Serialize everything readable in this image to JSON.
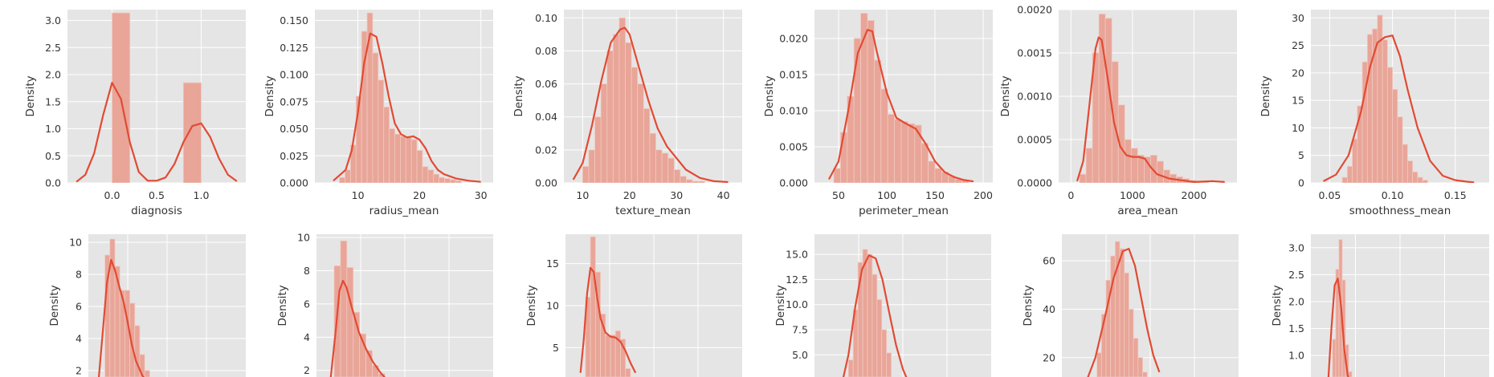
{
  "style": {
    "panel_bg": "#e5e5e5",
    "grid": "#ffffff",
    "bar_fill": "#e8a598",
    "bar_edge": "#f2c9c0",
    "kde": "#e24a33"
  },
  "chart_data": [
    {
      "type": "histogram+kde",
      "grid": true,
      "xlabel": "diagnosis",
      "ylabel": "Density",
      "xlim": [
        -0.5,
        1.5
      ],
      "ylim": [
        0,
        3.2
      ],
      "xticks": [
        0.0,
        0.5,
        1.0
      ],
      "yticks": [
        0,
        0.5,
        1.0,
        1.5,
        2.0,
        2.5,
        3.0
      ],
      "xtick_labels": [
        "0.0",
        "0.5",
        "1.0"
      ],
      "ytick_labels": [
        "0.0",
        "0.5",
        "1.0",
        "1.5",
        "2.0",
        "2.5",
        "3.0"
      ],
      "bins": {
        "start": 0.0,
        "width": 0.2,
        "density": [
          3.14,
          0,
          0,
          0,
          1.85
        ]
      },
      "kde": {
        "x": [
          -0.4,
          -0.3,
          -0.2,
          -0.1,
          0.0,
          0.1,
          0.2,
          0.3,
          0.4,
          0.5,
          0.6,
          0.7,
          0.8,
          0.9,
          1.0,
          1.1,
          1.2,
          1.3,
          1.4
        ],
        "y": [
          0.02,
          0.15,
          0.55,
          1.25,
          1.85,
          1.55,
          0.75,
          0.2,
          0.04,
          0.04,
          0.1,
          0.35,
          0.75,
          1.05,
          1.1,
          0.85,
          0.45,
          0.15,
          0.03
        ]
      }
    },
    {
      "type": "histogram+kde",
      "grid": true,
      "xlabel": "radius_mean",
      "ylabel": "Density",
      "xlim": [
        3,
        32
      ],
      "ylim": [
        0,
        0.16
      ],
      "xticks": [
        10,
        20,
        30
      ],
      "yticks": [
        0,
        0.025,
        0.05,
        0.075,
        0.1,
        0.125,
        0.15
      ],
      "xtick_labels": [
        "10",
        "20",
        "30"
      ],
      "ytick_labels": [
        "0.000",
        "0.025",
        "0.050",
        "0.075",
        "0.100",
        "0.125",
        "0.150"
      ],
      "bins": {
        "start": 7,
        "width": 0.9,
        "density": [
          0.005,
          0.012,
          0.035,
          0.08,
          0.14,
          0.157,
          0.12,
          0.095,
          0.07,
          0.05,
          0.045,
          0.043,
          0.042,
          0.04,
          0.03,
          0.015,
          0.012,
          0.008,
          0.005,
          0.004,
          0.003,
          0.002
        ]
      },
      "kde": {
        "x": [
          6,
          8,
          9,
          10,
          11,
          12,
          13,
          14,
          15,
          16,
          17,
          18,
          19,
          20,
          21,
          22,
          23,
          24,
          26,
          28,
          30
        ],
        "y": [
          0.002,
          0.012,
          0.03,
          0.065,
          0.11,
          0.138,
          0.135,
          0.11,
          0.08,
          0.055,
          0.045,
          0.042,
          0.043,
          0.04,
          0.032,
          0.02,
          0.012,
          0.008,
          0.004,
          0.002,
          0.001
        ]
      }
    },
    {
      "type": "histogram+kde",
      "grid": true,
      "xlabel": "texture_mean",
      "ylabel": "Density",
      "xlim": [
        6,
        44
      ],
      "ylim": [
        0,
        0.105
      ],
      "xticks": [
        10,
        20,
        30,
        40
      ],
      "yticks": [
        0,
        0.02,
        0.04,
        0.06,
        0.08,
        0.1
      ],
      "xtick_labels": [
        "10",
        "20",
        "30",
        "40"
      ],
      "ytick_labels": [
        "0.00",
        "0.02",
        "0.04",
        "0.06",
        "0.08",
        "0.10"
      ],
      "bins": {
        "start": 10,
        "width": 1.3,
        "density": [
          0.01,
          0.02,
          0.04,
          0.06,
          0.08,
          0.09,
          0.1,
          0.085,
          0.07,
          0.06,
          0.045,
          0.03,
          0.02,
          0.018,
          0.015,
          0.008,
          0.004,
          0.002,
          0.001,
          0.001
        ]
      },
      "kde": {
        "x": [
          8,
          10,
          12,
          14,
          16,
          18,
          19,
          20,
          22,
          24,
          26,
          28,
          30,
          32,
          35,
          38,
          41
        ],
        "y": [
          0.002,
          0.012,
          0.035,
          0.062,
          0.085,
          0.093,
          0.094,
          0.09,
          0.07,
          0.05,
          0.033,
          0.022,
          0.015,
          0.008,
          0.003,
          0.001,
          0.0005
        ]
      }
    },
    {
      "type": "histogram+kde",
      "grid": true,
      "xlabel": "perimeter_mean",
      "ylabel": "Density",
      "xlim": [
        25,
        210
      ],
      "ylim": [
        0,
        0.024
      ],
      "xticks": [
        50,
        100,
        150,
        200
      ],
      "yticks": [
        0,
        0.005,
        0.01,
        0.015,
        0.02
      ],
      "xtick_labels": [
        "50",
        "100",
        "150",
        "200"
      ],
      "ytick_labels": [
        "0.000",
        "0.005",
        "0.010",
        "0.015",
        "0.020"
      ],
      "bins": {
        "start": 45,
        "width": 7,
        "density": [
          0.002,
          0.007,
          0.012,
          0.02,
          0.0235,
          0.0225,
          0.017,
          0.013,
          0.0095,
          0.0088,
          0.0085,
          0.0082,
          0.008,
          0.0055,
          0.003,
          0.002,
          0.0015,
          0.001,
          0.0005,
          0.0004
        ]
      },
      "kde": {
        "x": [
          40,
          50,
          60,
          70,
          80,
          85,
          90,
          100,
          110,
          120,
          130,
          140,
          150,
          160,
          170,
          180,
          190
        ],
        "y": [
          0.0005,
          0.003,
          0.01,
          0.018,
          0.0212,
          0.021,
          0.018,
          0.0125,
          0.009,
          0.0082,
          0.0075,
          0.0055,
          0.003,
          0.0015,
          0.0008,
          0.0004,
          0.0002
        ]
      }
    },
    {
      "type": "histogram+kde",
      "grid": true,
      "xlabel": "area_mean",
      "ylabel": "Density",
      "xlim": [
        -200,
        2700
      ],
      "ylim": [
        0,
        0.002
      ],
      "xticks": [
        0,
        1000,
        2000
      ],
      "yticks": [
        0,
        0.0005,
        0.001,
        0.0015,
        0.002
      ],
      "xtick_labels": [
        "0",
        "1000",
        "2000"
      ],
      "ytick_labels": [
        "0.0000",
        "0.0005",
        "0.0010",
        "0.0015",
        "0.0020"
      ],
      "bins": {
        "start": 140,
        "width": 105,
        "density": [
          0.0001,
          0.0004,
          0.0015,
          0.00195,
          0.0019,
          0.0014,
          0.0009,
          0.0005,
          0.0004,
          0.00032,
          0.0003,
          0.00032,
          0.00025,
          0.00015,
          0.0001,
          7e-05,
          5e-05,
          3e-05,
          2e-05,
          1e-05
        ]
      },
      "kde": {
        "x": [
          100,
          200,
          300,
          400,
          450,
          500,
          600,
          700,
          800,
          900,
          1000,
          1100,
          1200,
          1300,
          1400,
          1600,
          1800,
          2000,
          2300,
          2500
        ],
        "y": [
          2e-05,
          0.00025,
          0.0009,
          0.00155,
          0.00168,
          0.00165,
          0.0012,
          0.0007,
          0.00042,
          0.00032,
          0.0003,
          0.0003,
          0.00028,
          0.00018,
          0.0001,
          5e-05,
          3e-05,
          1e-05,
          2e-05,
          1e-05
        ]
      }
    },
    {
      "type": "histogram+kde",
      "grid": true,
      "xlabel": "smoothness_mean",
      "ylabel": "Density",
      "xlim": [
        0.035,
        0.177
      ],
      "ylim": [
        0,
        31.5
      ],
      "xticks": [
        0.05,
        0.1,
        0.15
      ],
      "yticks": [
        0,
        5,
        10,
        15,
        20,
        25,
        30
      ],
      "xtick_labels": [
        "0.05",
        "0.10",
        "0.15"
      ],
      "ytick_labels": [
        "0",
        "5",
        "10",
        "15",
        "20",
        "25",
        "30"
      ],
      "bins": {
        "start": 0.06,
        "width": 0.004,
        "density": [
          1,
          3,
          8,
          14,
          22,
          27,
          28,
          30.5,
          26,
          21,
          17,
          12,
          7,
          4,
          2,
          1,
          0.5
        ]
      },
      "kde": {
        "x": [
          0.045,
          0.055,
          0.065,
          0.075,
          0.082,
          0.088,
          0.094,
          0.1,
          0.106,
          0.112,
          0.12,
          0.13,
          0.14,
          0.15,
          0.16,
          0.165
        ],
        "y": [
          0.3,
          1.5,
          5,
          13,
          21,
          25.5,
          26.5,
          26.8,
          23,
          17,
          10,
          4,
          1.3,
          0.5,
          0.2,
          0.1
        ]
      }
    },
    {
      "type": "histogram+kde",
      "grid": true,
      "xlabel": "",
      "ylabel": "Density",
      "xlim": [
        -0.01,
        0.37
      ],
      "ylim": [
        1.6,
        10.5
      ],
      "xticks": [],
      "yticks": [
        2,
        4,
        6,
        8,
        10
      ],
      "xtick_labels": [],
      "ytick_labels": [
        "2",
        "4",
        "6",
        "8",
        "10"
      ],
      "bins": {
        "start": 0.03,
        "width": 0.012,
        "density": [
          9.2,
          10.2,
          8.5,
          7,
          7,
          6.2,
          4.8,
          3,
          2
        ]
      },
      "kde": {
        "x": [
          0.015,
          0.025,
          0.035,
          0.045,
          0.055,
          0.065,
          0.075,
          0.085,
          0.095,
          0.105,
          0.12,
          0.135
        ],
        "y": [
          1.5,
          4.5,
          7.5,
          8.9,
          8.2,
          7.2,
          6.3,
          5,
          3.6,
          2.6,
          1.7,
          1.2
        ]
      }
    },
    {
      "type": "histogram+kde",
      "grid": true,
      "xlabel": "",
      "ylabel": "Density",
      "xlim": [
        -0.05,
        0.45
      ],
      "ylim": [
        1.6,
        10.2
      ],
      "xticks": [],
      "yticks": [
        2,
        4,
        6,
        8,
        10
      ],
      "xtick_labels": [],
      "ytick_labels": [
        "2",
        "4",
        "6",
        "8",
        "10"
      ],
      "bins": {
        "start": 0.0,
        "width": 0.018,
        "density": [
          8.3,
          9.8,
          8.2,
          5.5,
          4.2,
          3.2,
          2.3,
          1.8
        ]
      },
      "kde": {
        "x": [
          -0.01,
          0.005,
          0.015,
          0.025,
          0.035,
          0.05,
          0.07,
          0.09,
          0.11,
          0.13,
          0.15,
          0.17
        ],
        "y": [
          1.5,
          4.5,
          6.8,
          7.4,
          7,
          5.8,
          4.3,
          3.3,
          2.5,
          1.9,
          1.4,
          1.0
        ]
      }
    },
    {
      "type": "histogram+kde",
      "grid": true,
      "xlabel": "",
      "ylabel": "Density",
      "xlim": [
        -0.06,
        0.47
      ],
      "ylim": [
        1.5,
        18.5
      ],
      "xticks": [],
      "yticks": [
        5,
        10,
        15
      ],
      "xtick_labels": [],
      "ytick_labels": [
        "5",
        "10",
        "15"
      ],
      "bins": {
        "start": 0.0,
        "width": 0.015,
        "density": [
          11,
          18.2,
          14,
          9,
          6.5,
          6.5,
          7,
          6,
          2.5
        ]
      },
      "kde": {
        "x": [
          -0.015,
          -0.005,
          0.005,
          0.015,
          0.025,
          0.035,
          0.045,
          0.06,
          0.075,
          0.09,
          0.105,
          0.12,
          0.135,
          0.15
        ],
        "y": [
          2,
          6,
          11.5,
          14.5,
          14,
          11,
          8.5,
          6.8,
          6.3,
          6.2,
          5.7,
          4.6,
          3.2,
          2
        ]
      }
    },
    {
      "type": "histogram+kde",
      "grid": true,
      "xlabel": "",
      "ylabel": "Density",
      "xlim": [
        0.09,
        0.35
      ],
      "ylim": [
        2.8,
        17
      ],
      "xticks": [],
      "yticks": [
        5.0,
        7.5,
        10.0,
        12.5,
        15.0
      ],
      "xtick_labels": [],
      "ytick_labels": [
        "5.0",
        "7.5",
        "10.0",
        "12.5",
        "15.0"
      ],
      "bins": {
        "start": 0.14,
        "width": 0.007,
        "density": [
          4.5,
          9.5,
          14.2,
          15.5,
          15,
          13,
          10.5,
          7.5,
          5.2
        ]
      },
      "kde": {
        "x": [
          0.13,
          0.14,
          0.15,
          0.16,
          0.17,
          0.18,
          0.19,
          0.2,
          0.21,
          0.22,
          0.23
        ],
        "y": [
          2,
          5,
          9.8,
          13.5,
          14.9,
          14.6,
          12.5,
          9.2,
          6,
          3.6,
          2
        ]
      }
    },
    {
      "type": "histogram+kde",
      "grid": true,
      "xlabel": "",
      "ylabel": "Density",
      "xlim": [
        0.042,
        0.1
      ],
      "ylim": [
        12,
        71
      ],
      "xticks": [],
      "yticks": [
        20,
        40,
        60
      ],
      "xtick_labels": [],
      "ytick_labels": [
        "20",
        "40",
        "60"
      ],
      "bins": {
        "start": 0.0535,
        "width": 0.0015,
        "density": [
          22,
          38,
          52,
          62,
          68,
          65,
          55,
          40,
          28,
          20,
          14
        ]
      },
      "kde": {
        "x": [
          0.05,
          0.053,
          0.056,
          0.059,
          0.062,
          0.064,
          0.066,
          0.068,
          0.07,
          0.072,
          0.074
        ],
        "y": [
          10,
          20,
          36,
          53,
          64,
          65,
          58,
          45,
          32,
          21,
          14
        ]
      }
    },
    {
      "type": "histogram+kde",
      "grid": true,
      "xlabel": "",
      "ylabel": "Density",
      "xlim": [
        -0.3,
        3.0
      ],
      "ylim": [
        0.6,
        3.25
      ],
      "xticks": [],
      "yticks": [
        1.0,
        1.5,
        2.0,
        2.5,
        3.0
      ],
      "xtick_labels": [],
      "ytick_labels": [
        "1.0",
        "1.5",
        "2.0",
        "2.5",
        "3.0"
      ],
      "bins": {
        "start": 0.1,
        "width": 0.06,
        "density": [
          1.3,
          2.6,
          3.15,
          2.4,
          1.2,
          0.7
        ]
      },
      "kde": {
        "x": [
          0.02,
          0.08,
          0.14,
          0.2,
          0.26,
          0.32,
          0.38,
          0.44
        ],
        "y": [
          0.5,
          1.5,
          2.3,
          2.43,
          1.9,
          1.1,
          0.65,
          0.4
        ]
      }
    }
  ]
}
